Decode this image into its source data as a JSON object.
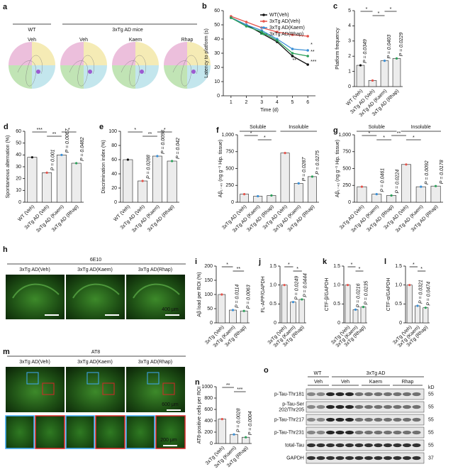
{
  "panel_a": {
    "label": "a",
    "wt": "WT",
    "ad": "3xTg AD mice",
    "groups": [
      "Veh",
      "Veh",
      "Kaem",
      "Rhap"
    ]
  },
  "chart_data": [
    {
      "type": "line",
      "label": "b",
      "ylabel": "Latency to platform (s)",
      "xlabel": "Time (d)",
      "x": [
        1,
        2,
        3,
        4,
        5,
        6
      ],
      "xlim": [
        0.5,
        6.5
      ],
      "xticks": [
        1,
        2,
        3,
        4,
        5,
        6
      ],
      "ylim": [
        0,
        60
      ],
      "yticks": [
        0,
        10,
        20,
        30,
        40,
        50,
        60
      ],
      "series": [
        {
          "name": "WT(Veh)",
          "color": "#111111",
          "values": [
            55,
            50,
            44,
            38,
            28,
            22
          ]
        },
        {
          "name": "3xTg AD(Veh)",
          "color": "#e5534b",
          "values": [
            56,
            52,
            48,
            45,
            43,
            42
          ]
        },
        {
          "name": "3xTg AD(Kaem)",
          "color": "#3a8fd6",
          "values": [
            55,
            50,
            46,
            40,
            33,
            32
          ]
        },
        {
          "name": "3xTg AD(Rhap)",
          "color": "#2ca05a",
          "values": [
            55,
            49,
            45,
            39,
            30,
            28
          ]
        }
      ],
      "annotations": [
        "**",
        "*",
        "**",
        "***"
      ]
    },
    {
      "type": "bar",
      "label": "c",
      "ylabel": "Platform frequency",
      "categories": [
        "WT (Veh)",
        "3xTg AD (Veh)",
        "3xTg AD (Kaem)",
        "3xTg AD (Rhap)"
      ],
      "values": [
        1.4,
        0.4,
        1.7,
        1.85
      ],
      "point_colors": [
        "#111111",
        "#e5534b",
        "#3a8fd6",
        "#2ca05a"
      ],
      "ylim": [
        0,
        5
      ],
      "yticks": [
        0,
        1,
        2,
        3,
        4,
        5
      ],
      "p_values": [
        "P = 0.0349",
        null,
        "P = 0.0403",
        "P = 0.0229"
      ],
      "stars": [
        "*",
        "*",
        "*"
      ]
    },
    {
      "type": "bar",
      "label": "d",
      "ylabel": "Spontaneous alternation (%)",
      "categories": [
        "WT (Veh)",
        "3xTg AD (Veh)",
        "3xTg AD (Kaem)",
        "3xTg AD (Rhap)"
      ],
      "values": [
        38,
        25,
        40,
        33
      ],
      "point_colors": [
        "#111111",
        "#e5534b",
        "#3a8fd6",
        "#2ca05a"
      ],
      "ylim": [
        0,
        60
      ],
      "yticks": [
        0,
        10,
        20,
        30,
        40,
        50,
        60
      ],
      "p_values": [
        null,
        "P = 0.001",
        "P = 0.0067",
        "P = 0.0482"
      ],
      "stars": [
        "***",
        "**",
        "*"
      ]
    },
    {
      "type": "bar",
      "label": "e",
      "ylabel": "Discrimination index (%)",
      "categories": [
        "WT (Veh)",
        "3xTg AD (Veh)",
        "3xTg AD (Kaem)",
        "3xTg AD (Rhap)"
      ],
      "values": [
        60,
        30,
        65,
        58
      ],
      "point_colors": [
        "#111111",
        "#e5534b",
        "#3a8fd6",
        "#2ca05a"
      ],
      "ylim": [
        0,
        100
      ],
      "yticks": [
        0,
        20,
        40,
        60,
        80,
        100
      ],
      "p_values": [
        null,
        "P = 0.0288",
        "P = 0.0098",
        "P = 0.042"
      ],
      "stars": [
        "*",
        "**",
        "*"
      ]
    },
    {
      "type": "bar",
      "label": "f",
      "ylabel": "Aβ₁₋₄₀ (ng g⁻¹ Hip. tissue)",
      "categories": [
        "3xTg AD (Veh)",
        "3xTg AD (Kaem)",
        "3xTg AD (Rhap)",
        "3xTg AD (Veh)",
        "3xTg AD (Kaem)",
        "3xTg AD (Rhap)"
      ],
      "values": [
        120,
        90,
        100,
        730,
        280,
        380
      ],
      "point_colors": [
        "#e5534b",
        "#3a8fd6",
        "#2ca05a",
        "#e5534b",
        "#3a8fd6",
        "#2ca05a"
      ],
      "ylim": [
        0,
        1000
      ],
      "yticks": [
        0,
        250,
        500,
        750,
        {
          "value": 1000,
          "label": "1,000"
        }
      ],
      "groups": [
        "Soluble",
        "Insoluble"
      ],
      "p_values": [
        null,
        null,
        null,
        null,
        "P = 0.0287",
        "P = 0.0275"
      ],
      "stars": [
        "*",
        "*"
      ]
    },
    {
      "type": "bar",
      "label": "g",
      "ylabel": "Aβ₁₋₄₂ (ng g⁻¹ Hip. tissue)",
      "categories": [
        "3xTg AD (Veh)",
        "3xTg AD (Kaem)",
        "3xTg AD (Rhap)",
        "3xTg AD (Veh)",
        "3xTg AD (Kaem)",
        "3xTg AD (Rhap)"
      ],
      "values": [
        230,
        120,
        100,
        560,
        230,
        240
      ],
      "point_colors": [
        "#e5534b",
        "#3a8fd6",
        "#2ca05a",
        "#e5534b",
        "#3a8fd6",
        "#2ca05a"
      ],
      "ylim": [
        0,
        1000
      ],
      "yticks": [
        0,
        250,
        500,
        750,
        {
          "value": 1000,
          "label": "1,000"
        }
      ],
      "groups": [
        "Soluble",
        "Insoluble"
      ],
      "p_values": [
        null,
        "P = 0.0461",
        "P = 0.0224",
        null,
        "P = 0.0092",
        "P = 0.0178"
      ],
      "stars": [
        "*",
        "*",
        "**",
        "*"
      ]
    },
    {
      "type": "bar",
      "label": "i",
      "ylabel": "Aβ load per ROI (%)",
      "categories": [
        "3xTg (Veh)",
        "3xTg (Kaem)",
        "3xTg (Rhap)"
      ],
      "values": [
        100,
        45,
        42
      ],
      "point_colors": [
        "#e5534b",
        "#3a8fd6",
        "#2ca05a"
      ],
      "ylim": [
        0,
        200
      ],
      "yticks": [
        0,
        50,
        100,
        150,
        200
      ],
      "p_values": [
        null,
        "P = 0.0114",
        "P = 0.0063"
      ],
      "stars": [
        "*",
        "**"
      ]
    },
    {
      "type": "bar",
      "label": "j",
      "ylabel": "FL-APP/GAPDH",
      "categories": [
        "3xTg (Veh)",
        "3xTg (Kaem)",
        "3xTg (Rhap)"
      ],
      "values": [
        1.0,
        0.55,
        0.62
      ],
      "point_colors": [
        "#e5534b",
        "#3a8fd6",
        "#2ca05a"
      ],
      "ylim": [
        0,
        1.5
      ],
      "yticks": [
        0,
        0.5,
        {
          "value": 1,
          "label": "1.0"
        },
        1.5
      ],
      "p_values": [
        null,
        "P = 0.0249",
        "P = 0.0444"
      ],
      "stars": [
        "*",
        "*"
      ]
    },
    {
      "type": "bar",
      "label": "k",
      "ylabel": "CTF-β/GAPDH",
      "categories": [
        "3xTg (Veh)",
        "3xTg (Kaem)",
        "3xTg (Rhap)"
      ],
      "values": [
        1.0,
        0.35,
        0.42
      ],
      "point_colors": [
        "#e5534b",
        "#3a8fd6",
        "#2ca05a"
      ],
      "ylim": [
        0,
        1.5
      ],
      "yticks": [
        0,
        0.5,
        {
          "value": 1,
          "label": "1.0"
        },
        1.5
      ],
      "p_values": [
        null,
        "P = 0.0216",
        "P = 0.0235"
      ],
      "stars": [
        "*",
        "*"
      ]
    },
    {
      "type": "bar",
      "label": "l",
      "ylabel": "CTF-α/GAPDH",
      "categories": [
        "3xTg (Veh)",
        "3xTg (Kaem)",
        "3xTg (Rhap)"
      ],
      "values": [
        1.0,
        0.45,
        0.4
      ],
      "point_colors": [
        "#e5534b",
        "#3a8fd6",
        "#2ca05a"
      ],
      "ylim": [
        0,
        1.5
      ],
      "yticks": [
        0,
        0.5,
        {
          "value": 1,
          "label": "1.0"
        },
        1.5
      ],
      "p_values": [
        null,
        "P = 0.0321",
        "P = 0.0474"
      ],
      "stars": [
        "*",
        "*"
      ]
    },
    {
      "type": "bar",
      "label": "n",
      "ylabel": "AT8-positive cells per ROI",
      "categories": [
        "3xTg (Veh)",
        "3xTg (Kaem)",
        "3xTg (Rhap)"
      ],
      "values": [
        430,
        160,
        110
      ],
      "point_colors": [
        "#e5534b",
        "#3a8fd6",
        "#2ca05a"
      ],
      "ylim": [
        0,
        1000
      ],
      "yticks": [
        0,
        200,
        400,
        600,
        800,
        1000
      ],
      "p_values": [
        null,
        "P = 0.0028",
        "P = 0.0004"
      ],
      "stars": [
        "**",
        "***"
      ]
    }
  ],
  "panel_h": {
    "label": "h",
    "stain": "6E10",
    "groups": [
      "3xTg AD(Veh)",
      "3xTg AD(Kaem)",
      "3xTg AD(Rhap)"
    ],
    "scale": "400 μm"
  },
  "panel_m": {
    "label": "m",
    "stain": "AT8",
    "groups": [
      "3xTg AD(Veh)",
      "3xTg AD(Kaem)",
      "3xTg AD(Rhap)"
    ],
    "scale_top": "600 μm",
    "scale_bottom": "200 μm"
  },
  "panel_o": {
    "label": "o",
    "top": [
      "WT",
      "3xTg AD"
    ],
    "groups": [
      "Veh",
      "Veh",
      "Kaem",
      "Rhap"
    ],
    "unit": "kD",
    "rows": [
      {
        "name": "p-Tau-Thr181",
        "kd": 55
      },
      {
        "name": "p-Tau-Ser\n202/Thr205",
        "kd": 55
      },
      {
        "name": "p-Tau-Thr217",
        "kd": 55
      },
      {
        "name": "p-Tau-Thr231",
        "kd": 55
      },
      {
        "name": "total-Tau",
        "kd": 55
      },
      {
        "name": "GAPDH",
        "kd": 37
      }
    ]
  }
}
